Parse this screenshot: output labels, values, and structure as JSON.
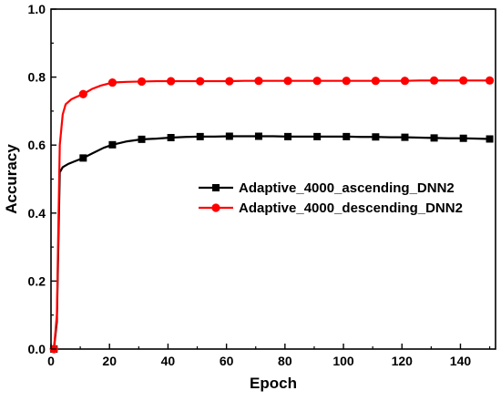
{
  "chart_data": {
    "type": "line",
    "title": "",
    "xlabel": "Epoch",
    "ylabel": "Accuracy",
    "xlim": [
      0,
      152
    ],
    "ylim": [
      0.0,
      1.0
    ],
    "xticks": [
      0,
      20,
      40,
      60,
      80,
      100,
      120,
      140
    ],
    "xtick_labels": [
      "0",
      "20",
      "40",
      "60",
      "80",
      "100",
      "120",
      "140"
    ],
    "yticks": [
      0.0,
      0.2,
      0.4,
      0.6,
      0.8,
      1.0
    ],
    "ytick_labels": [
      "0.0",
      "0.2",
      "0.4",
      "0.6",
      "0.8",
      "1.0"
    ],
    "grid": false,
    "legend_position": "center-right",
    "series": [
      {
        "name": "Adaptive_4000_ascending_DNN2",
        "color": "#000000",
        "marker": "square",
        "x": [
          1,
          2,
          3,
          4,
          6,
          8,
          11,
          14,
          18,
          21,
          26,
          31,
          36,
          41,
          46,
          51,
          56,
          61,
          66,
          71,
          76,
          81,
          86,
          91,
          96,
          101,
          106,
          111,
          116,
          121,
          126,
          131,
          136,
          141,
          146,
          150
        ],
        "values": [
          0.0,
          0.08,
          0.52,
          0.535,
          0.545,
          0.552,
          0.562,
          0.575,
          0.592,
          0.601,
          0.611,
          0.617,
          0.619,
          0.622,
          0.624,
          0.625,
          0.625,
          0.626,
          0.626,
          0.626,
          0.626,
          0.625,
          0.625,
          0.625,
          0.625,
          0.625,
          0.624,
          0.624,
          0.623,
          0.623,
          0.622,
          0.621,
          0.62,
          0.62,
          0.619,
          0.618
        ],
        "marker_x": [
          1,
          11,
          21,
          31,
          41,
          51,
          61,
          71,
          81,
          91,
          101,
          111,
          121,
          131,
          141,
          150
        ],
        "marker_values": [
          0.0,
          0.562,
          0.601,
          0.617,
          0.622,
          0.625,
          0.626,
          0.626,
          0.625,
          0.625,
          0.625,
          0.624,
          0.623,
          0.621,
          0.62,
          0.618
        ]
      },
      {
        "name": "Adaptive_4000_descending_DNN2",
        "color": "#ff0000",
        "marker": "circle",
        "x": [
          1,
          2,
          3,
          4,
          5,
          7,
          9,
          11,
          14,
          17,
          21,
          26,
          31,
          36,
          41,
          46,
          51,
          56,
          61,
          66,
          71,
          76,
          81,
          86,
          91,
          96,
          101,
          106,
          111,
          116,
          121,
          126,
          131,
          136,
          141,
          146,
          150
        ],
        "values": [
          0.0,
          0.1,
          0.6,
          0.69,
          0.72,
          0.735,
          0.743,
          0.75,
          0.765,
          0.775,
          0.784,
          0.786,
          0.787,
          0.788,
          0.788,
          0.788,
          0.788,
          0.788,
          0.788,
          0.789,
          0.789,
          0.789,
          0.789,
          0.789,
          0.789,
          0.789,
          0.789,
          0.789,
          0.789,
          0.789,
          0.789,
          0.79,
          0.79,
          0.79,
          0.79,
          0.79,
          0.79
        ],
        "marker_x": [
          1,
          11,
          21,
          31,
          41,
          51,
          61,
          71,
          81,
          91,
          101,
          111,
          121,
          131,
          141,
          150
        ],
        "marker_values": [
          0.0,
          0.75,
          0.784,
          0.787,
          0.788,
          0.788,
          0.788,
          0.789,
          0.789,
          0.789,
          0.789,
          0.789,
          0.789,
          0.79,
          0.79,
          0.79
        ]
      }
    ]
  }
}
